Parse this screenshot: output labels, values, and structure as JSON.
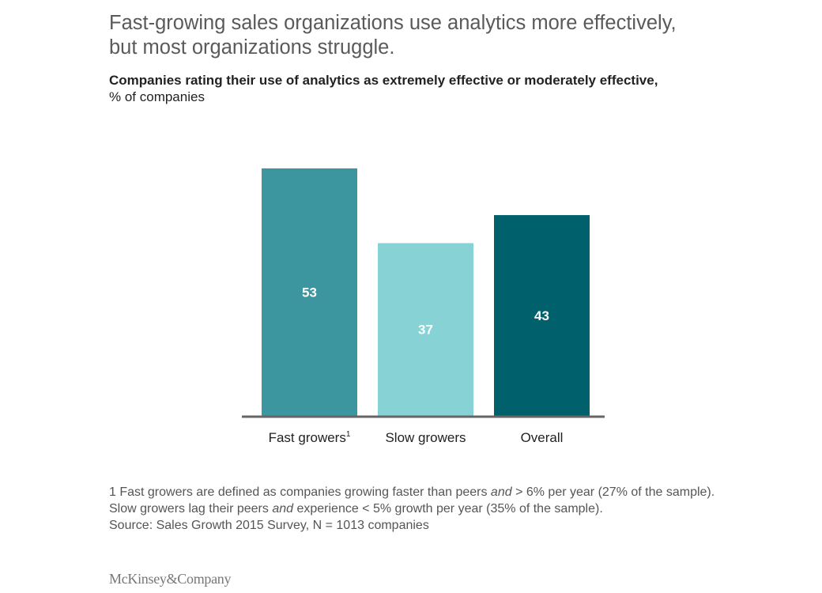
{
  "title": "Fast-growing sales organizations use analytics more effectively, but most organizations struggle.",
  "subtitle_bold": "Companies rating their use of analytics as extremely effective or moderately effective,",
  "subtitle_unit": "% of companies",
  "chart_data": {
    "type": "bar",
    "categories": [
      "Fast growers",
      "Slow growers",
      "Overall"
    ],
    "category_footnotes": [
      "1",
      "",
      ""
    ],
    "values": [
      53,
      37,
      43
    ],
    "colors": [
      "#3b96a0",
      "#87d2d4",
      "#00606b"
    ],
    "data_labels": [
      "53",
      "37",
      "43"
    ],
    "ylim": [
      0,
      55
    ],
    "grid": false,
    "axis_color": "#666666"
  },
  "footnote": {
    "line1_a": "1 Fast growers are defined as companies growing faster than peers ",
    "line1_em": "and",
    "line1_b": " > 6% per year (27% of the sample). Slow growers lag their peers ",
    "line2_em": "and",
    "line2_b": " experience < 5% growth per year (35% of the sample).",
    "source": "Source: Sales Growth 2015 Survey, N = 1013 companies"
  },
  "logo": "McKinsey&Company"
}
